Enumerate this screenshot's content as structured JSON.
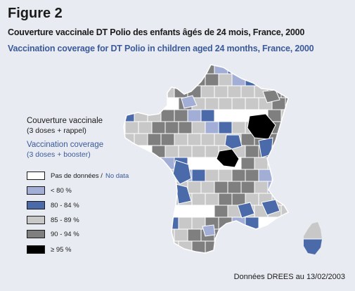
{
  "figure_label": "Figure 2",
  "title_fr": "Couverture vaccinale DT Polio des enfants âgés de 24 mois, France, 2000",
  "title_en": "Vaccination coverage for DT Polio in children aged 24 months, France, 2000",
  "colors": {
    "background": "#e8ebf1",
    "english_text": "#3b5a9a",
    "no_data": "#ffffff",
    "lt80": "#a3aed6",
    "c80_84": "#4a6aaa",
    "c85_89": "#c8c8c8",
    "c90_94": "#7f7f7f",
    "ge95": "#000000",
    "borders": "#ffffff"
  },
  "legend": {
    "heading_fr": [
      "Couverture vaccinale",
      "(3 doses + rappel)"
    ],
    "heading_en": [
      "Vaccination coverage",
      "(3 doses + booster)"
    ],
    "items": [
      {
        "id": "no_data",
        "label_fr": "Pas de données /",
        "label_en": "No data",
        "color": "#ffffff"
      },
      {
        "id": "lt80",
        "label_fr": "< 80 %",
        "label_en": "",
        "color": "#a3aed6"
      },
      {
        "id": "c80_84",
        "label_fr": "80 - 84 %",
        "label_en": "",
        "color": "#4a6aaa"
      },
      {
        "id": "c85_89",
        "label_fr": "85 - 89 %",
        "label_en": "",
        "color": "#c8c8c8"
      },
      {
        "id": "c90_94",
        "label_fr": "90 - 94 %",
        "label_en": "",
        "color": "#7f7f7f"
      },
      {
        "id": "ge95",
        "label_fr": "≥ 95 %",
        "label_en": "",
        "color": "#000000"
      }
    ]
  },
  "map": {
    "description_classes": [
      "no_data",
      "lt80",
      "c80_84",
      "c85_89",
      "c90_94",
      "ge95"
    ]
  },
  "source": "Données DREES au 13/02/2003"
}
